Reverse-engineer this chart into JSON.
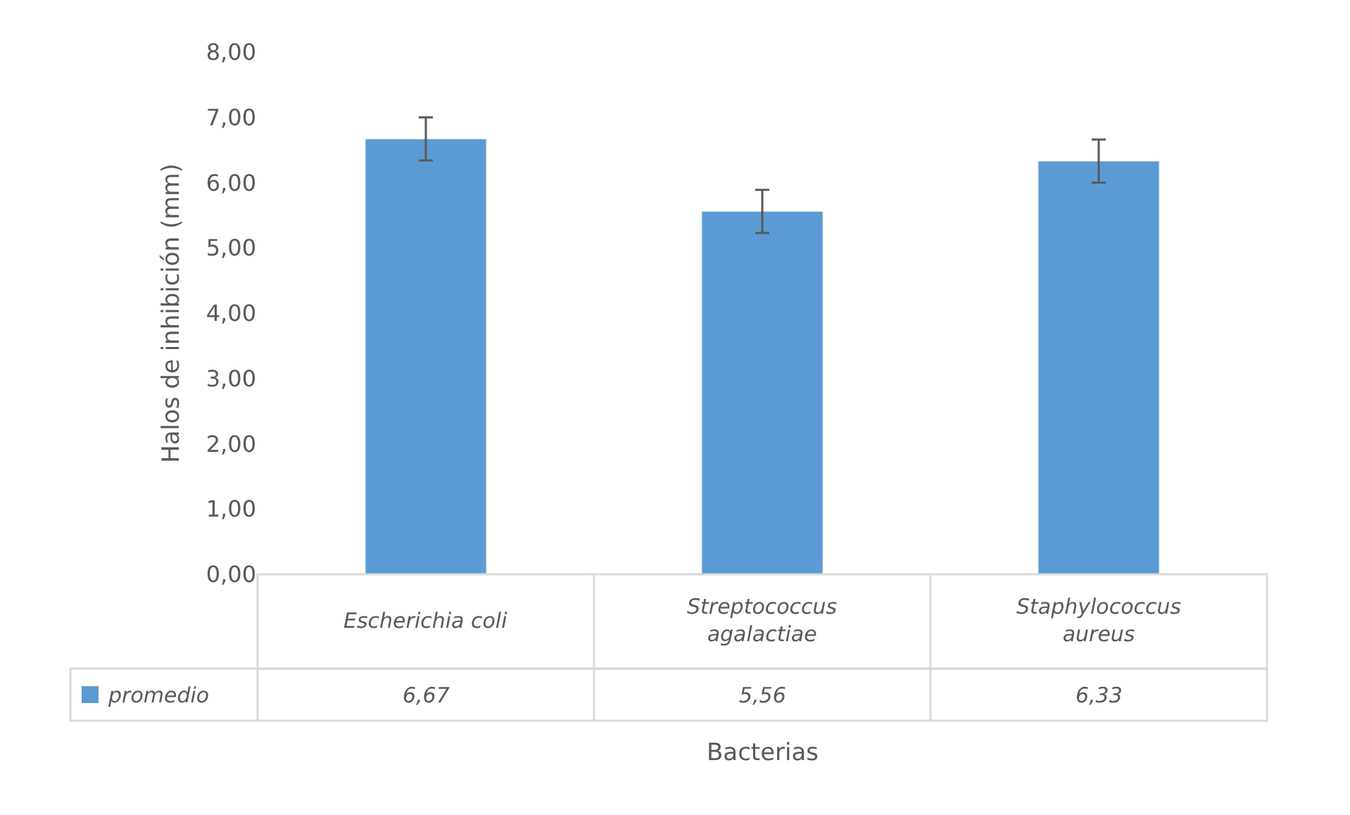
{
  "chart_data": {
    "type": "bar",
    "xlabel": "Bacterias",
    "ylabel": "Halos de inhibición (mm)",
    "categories": [
      "Escherichia coli",
      "Streptococcus agalactiae",
      "Staphylococcus aureus"
    ],
    "series": [
      {
        "name": "promedio",
        "color": "#5b9bd5",
        "values": [
          6.67,
          5.56,
          6.33
        ],
        "errors": [
          0.33,
          0.33,
          0.33
        ],
        "value_labels": [
          "6,67",
          "5,56",
          "6,33"
        ]
      }
    ],
    "ylim": [
      0,
      8
    ],
    "yticks": [
      {
        "value": 0,
        "label": "0,00"
      },
      {
        "value": 1,
        "label": "1,00"
      },
      {
        "value": 2,
        "label": "2,00"
      },
      {
        "value": 3,
        "label": "3,00"
      },
      {
        "value": 4,
        "label": "4,00"
      },
      {
        "value": 5,
        "label": "5,00"
      },
      {
        "value": 6,
        "label": "6,00"
      },
      {
        "value": 7,
        "label": "7,00"
      },
      {
        "value": 8,
        "label": "8,00"
      }
    ]
  }
}
